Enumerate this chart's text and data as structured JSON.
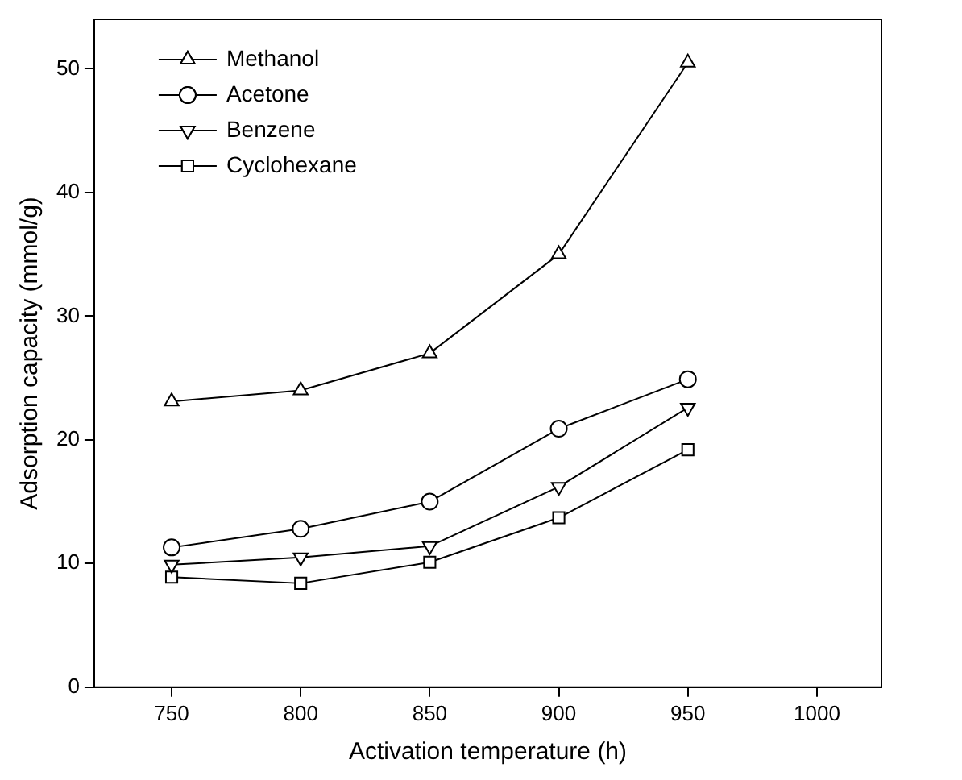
{
  "chart_data": {
    "type": "line",
    "xlabel": "Activation temperature (h)",
    "ylabel": "Adsorption capacity (mmol/g)",
    "x": [
      750,
      800,
      850,
      900,
      950
    ],
    "series": [
      {
        "name": "Methanol",
        "color": "#000000",
        "marker": "triangle",
        "values": [
          23.1,
          24,
          27,
          35,
          50.5
        ]
      },
      {
        "name": "Acetone",
        "color": "#000000",
        "marker": "circle",
        "values": [
          11.3,
          12.8,
          15,
          20.9,
          24.9
        ]
      },
      {
        "name": "Benzene",
        "color": "#000000",
        "marker": "triangle_down",
        "values": [
          9.9,
          10.5,
          11.4,
          16.2,
          22.6
        ]
      },
      {
        "name": "Cyclohexane",
        "color": "#000000",
        "marker": "square",
        "values": [
          8.9,
          8.4,
          10.1,
          13.7,
          19.2
        ]
      }
    ],
    "xlim": [
      720,
      1025
    ],
    "xticks": [
      750,
      800,
      850,
      900,
      950,
      1000
    ],
    "ylim": [
      0,
      54
    ],
    "yticks": [
      0,
      10,
      20,
      30,
      40,
      50
    ],
    "grid": false,
    "legend": "top left",
    "line_style": "solid"
  }
}
